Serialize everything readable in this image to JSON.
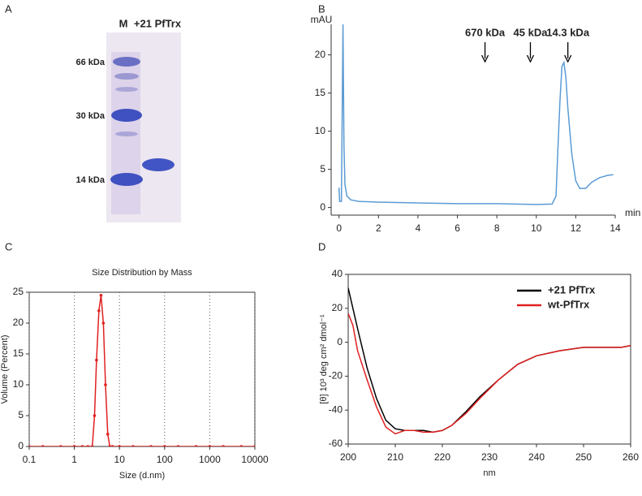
{
  "panel_labels": [
    "A",
    "B",
    "C",
    "D"
  ],
  "gel": {
    "lanes": [
      "M",
      "+21 PfTrx"
    ],
    "markers": [
      "66 kDa",
      "30 kDa",
      "14 kDa"
    ]
  },
  "chart_data": [
    {
      "type": "line",
      "xlabel": "min",
      "ylabel": "mAU",
      "x": [
        0,
        0.03,
        0.12,
        0.2,
        0.25,
        0.3,
        0.4,
        0.6,
        1,
        2,
        4,
        6,
        8,
        10,
        10.8,
        11.0,
        11.1,
        11.2,
        11.3,
        11.4,
        11.5,
        11.6,
        11.8,
        12.0,
        12.2,
        12.5,
        12.8,
        13.2,
        13.6,
        13.9
      ],
      "series": [
        {
          "color": "#5b9bd5",
          "values": [
            2.6,
            0.8,
            0.8,
            24,
            8,
            3,
            1.5,
            1.0,
            0.8,
            0.7,
            0.6,
            0.5,
            0.5,
            0.4,
            0.45,
            1.5,
            8,
            14,
            18.5,
            19,
            17,
            13,
            7,
            3.5,
            2.5,
            2.5,
            3.3,
            3.9,
            4.2,
            4.3
          ]
        }
      ],
      "xlim": [
        -0.4,
        14
      ],
      "ylim": [
        -1,
        24
      ],
      "xticks": [
        0,
        2,
        4,
        6,
        8,
        10,
        12,
        14
      ],
      "yticks": [
        0,
        5,
        10,
        15,
        20
      ],
      "annotations": [
        {
          "text": "670 kDa",
          "x": 7.4
        },
        {
          "text": "45 kDa",
          "x": 9.7
        },
        {
          "text": "14.3 kDa",
          "x": 11.6
        }
      ]
    },
    {
      "type": "line",
      "title": "Size Distribution by Mass",
      "xlabel": "Size (d.nm)",
      "ylabel": "Volume (Percent)",
      "xscale": "log",
      "markers": true,
      "grid": "x",
      "x": [
        0.1,
        0.2,
        0.5,
        1,
        1.5,
        2,
        2.5,
        2.8,
        3.1,
        3.5,
        3.9,
        4.4,
        4.9,
        5.5,
        6.1,
        7,
        10,
        20,
        50,
        100,
        200,
        500,
        1000,
        2000,
        5000,
        10000
      ],
      "series": [
        {
          "color": "#e02020",
          "values": [
            0,
            0,
            0,
            0,
            0,
            0,
            0,
            5,
            14,
            22,
            24.5,
            20,
            10,
            2,
            0,
            0,
            0,
            0,
            0,
            0,
            0,
            0,
            0,
            0,
            0,
            0
          ]
        }
      ],
      "xlim": [
        0.1,
        10000
      ],
      "ylim": [
        0,
        25
      ],
      "xticks": [
        0.1,
        1,
        10,
        100,
        1000,
        10000
      ],
      "yticks": [
        0,
        5,
        10,
        15,
        20,
        25
      ]
    },
    {
      "type": "line",
      "xlabel": "nm",
      "ylabel": "[θ] 10³ deg cm² dmol⁻¹",
      "legend": "upper right",
      "x": [
        200,
        201,
        202,
        204,
        206,
        208,
        210,
        212,
        214,
        216,
        218,
        220,
        222,
        225,
        228,
        232,
        236,
        240,
        245,
        250,
        255,
        258,
        260
      ],
      "series": [
        {
          "name": "+21 PfTrx",
          "color": "#000000",
          "values": [
            32,
            20,
            8,
            -15,
            -33,
            -46,
            -51,
            -52,
            -52,
            -52,
            -53,
            -52,
            -49,
            -41,
            -32,
            -22,
            -13,
            -8,
            -5,
            -3,
            -3,
            -3,
            -2
          ]
        },
        {
          "name": "wt-PfTrx",
          "color": "#e02020",
          "values": [
            17,
            10,
            -5,
            -22,
            -38,
            -50,
            -54,
            -52,
            -52,
            -53,
            -53,
            -52,
            -49,
            -42,
            -33,
            -22,
            -13,
            -8,
            -5,
            -3,
            -3,
            -3,
            -2
          ]
        }
      ],
      "xlim": [
        200,
        260
      ],
      "ylim": [
        -60,
        40
      ],
      "xticks": [
        200,
        210,
        220,
        230,
        240,
        250,
        260
      ],
      "yticks": [
        -60,
        -40,
        -20,
        0,
        20,
        40
      ]
    }
  ]
}
